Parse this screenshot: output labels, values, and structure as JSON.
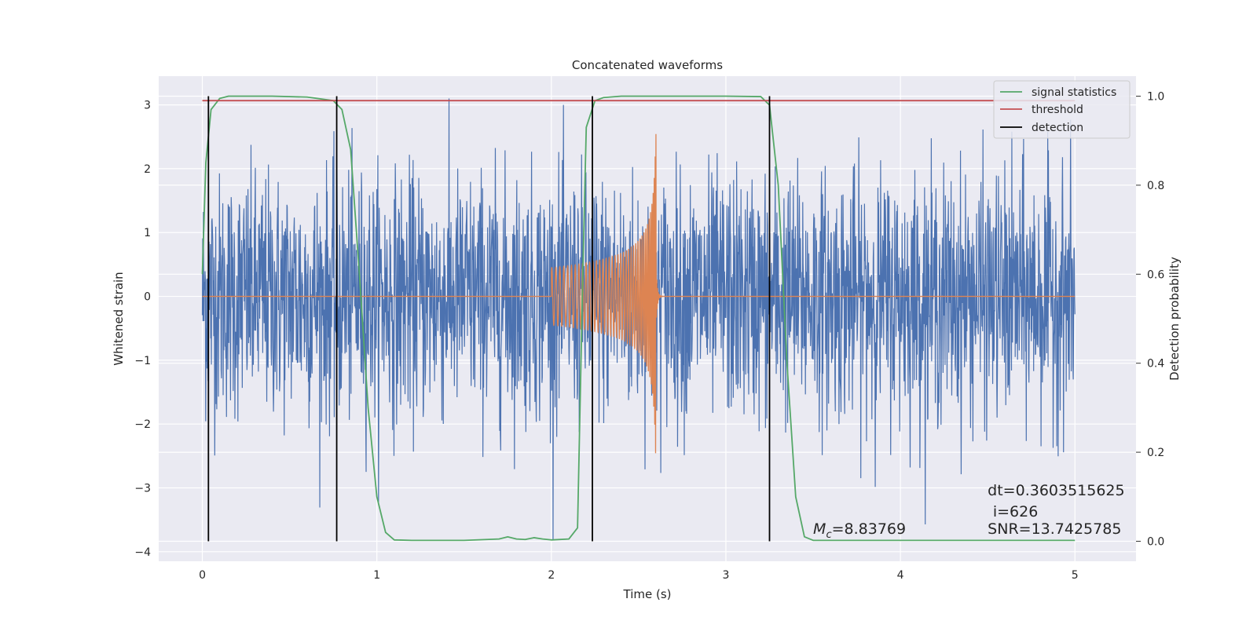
{
  "chart_data": {
    "type": "line",
    "title": "Concatenated waveforms",
    "xlabel": "Time (s)",
    "ylabel_left": "Whitened strain",
    "ylabel_right": "Detection probability",
    "xlim": [
      -0.25,
      5.35
    ],
    "ylim_left": [
      -4.15,
      3.45
    ],
    "ylim_right": [
      -0.045,
      1.045
    ],
    "x_ticks": [
      0,
      1,
      2,
      3,
      4,
      5
    ],
    "y_ticks_left": [
      -4,
      -3,
      -2,
      -1,
      0,
      1,
      2,
      3
    ],
    "y_ticks_right": [
      0.0,
      0.2,
      0.4,
      0.6,
      0.8,
      1.0
    ],
    "grid": true,
    "legend_position": "top-right",
    "legend": [
      "signal statistics",
      "threshold",
      "detection"
    ],
    "colors": {
      "strain": "#4c72b0",
      "template": "#dd8452",
      "signal_statistics": "#55a868",
      "threshold": "#c44e52",
      "detection": "#000000",
      "axes_bg": "#eaeaf2"
    },
    "series": [
      {
        "name": "signal statistics",
        "axis": "right",
        "x": [
          0.0,
          0.02,
          0.05,
          0.1,
          0.15,
          0.2,
          0.4,
          0.6,
          0.75,
          0.8,
          0.85,
          0.9,
          0.95,
          1.0,
          1.05,
          1.1,
          1.2,
          1.5,
          1.7,
          1.75,
          1.8,
          1.85,
          1.9,
          1.95,
          2.0,
          2.1,
          2.15,
          2.18,
          2.2,
          2.25,
          2.3,
          2.4,
          3.0,
          3.2,
          3.25,
          3.3,
          3.35,
          3.4,
          3.45,
          3.5,
          4.0,
          4.5,
          5.0
        ],
        "y": [
          0.6,
          0.85,
          0.97,
          0.995,
          1.0,
          1.0,
          1.0,
          0.998,
          0.99,
          0.97,
          0.88,
          0.6,
          0.3,
          0.1,
          0.02,
          0.003,
          0.002,
          0.002,
          0.005,
          0.01,
          0.005,
          0.004,
          0.008,
          0.005,
          0.003,
          0.005,
          0.03,
          0.6,
          0.93,
          0.99,
          0.997,
          1.0,
          1.0,
          0.999,
          0.98,
          0.8,
          0.4,
          0.1,
          0.01,
          0.002,
          0.002,
          0.002,
          0.002
        ]
      },
      {
        "name": "threshold",
        "axis": "right",
        "x": [
          0.0,
          5.0
        ],
        "y": [
          0.99,
          0.99
        ]
      },
      {
        "name": "detection",
        "axis": "right",
        "x": [
          0.035,
          0.77,
          2.235,
          3.25
        ],
        "ymin": 0.0,
        "ymax": 1.0
      }
    ],
    "annotations": [
      {
        "text": "dt=0.3603515625",
        "x": 4.5,
        "y": -3.12
      },
      {
        "text": "i=626",
        "x": 4.53,
        "y": -3.45
      },
      {
        "text": "SNR=13.7425785",
        "x": 4.5,
        "y": -3.72
      },
      {
        "text_main": "M",
        "text_sub": "c",
        "text_rest": "=8.83769",
        "x": 3.5,
        "y": -3.72
      }
    ]
  }
}
